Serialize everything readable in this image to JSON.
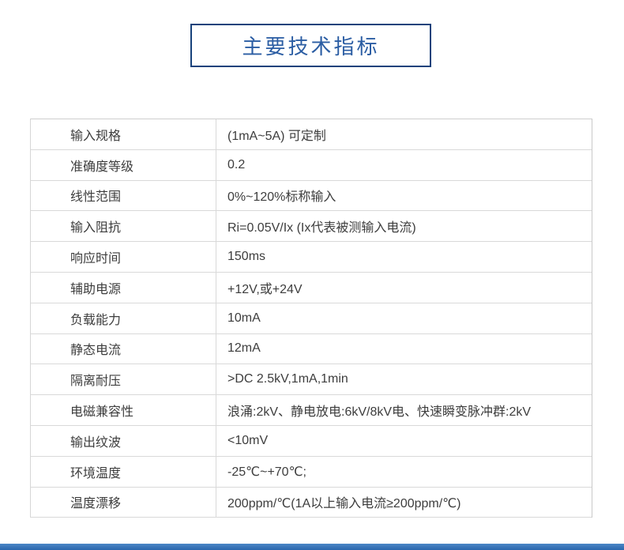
{
  "title": "主要技术指标",
  "table": {
    "rows": [
      {
        "label": "输入规格",
        "value": "(1mA~5A) 可定制"
      },
      {
        "label": "准确度等级",
        "value": "0.2"
      },
      {
        "label": "线性范围",
        "value": "0%~120%标称输入"
      },
      {
        "label": "输入阻抗",
        "value": "Ri=0.05V/Ix (Ix代表被测输入电流)"
      },
      {
        "label": "响应时间",
        "value": "150ms"
      },
      {
        "label": "辅助电源",
        "value": "+12V,或+24V"
      },
      {
        "label": "负载能力",
        "value": "10mA"
      },
      {
        "label": "静态电流",
        "value": "12mA"
      },
      {
        "label": "隔离耐压",
        "value": ">DC 2.5kV,1mA,1min"
      },
      {
        "label": "电磁兼容性",
        "value": "浪涌:2kV、静电放电:6kV/8kV电、快速瞬变脉冲群:2kV"
      },
      {
        "label": "输出纹波",
        "value": "<10mV"
      },
      {
        "label": "环境温度",
        "value": "-25℃~+70℃;"
      },
      {
        "label": "温度漂移",
        "value": "200ppm/℃(1A以上输入电流≥200ppm/℃)"
      }
    ]
  },
  "colors": {
    "title_border": "#17427b",
    "title_text": "#2b5da3",
    "table_border": "#d9d9d9",
    "cell_text": "#3d3d3d",
    "bottom_bar_top": "#4c87c6",
    "bottom_bar_bottom": "#2a66ad"
  }
}
